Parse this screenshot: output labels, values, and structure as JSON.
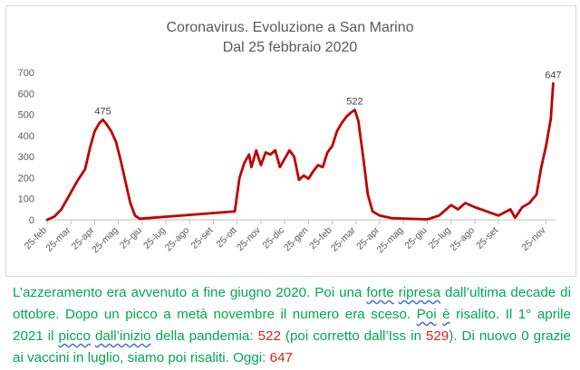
{
  "chart_data": {
    "type": "line",
    "title": "Coronavirus. Evoluzione a San Marino",
    "subtitle": "Dal 25 febbraio 2020",
    "xlabel": "",
    "ylabel": "",
    "ylim": [
      0,
      700
    ],
    "y_ticks": [
      "0",
      "100",
      "200",
      "300",
      "400",
      "500",
      "600",
      "700"
    ],
    "x_tick_labels": [
      "25-feb",
      "25-mar",
      "25-apr",
      "25-mag",
      "25-giu",
      "25-lug",
      "25-ago",
      "25-set",
      "25-ott",
      "25-nov",
      "25-dic",
      "25-gen",
      "25-feb",
      "25-mar",
      "25-apr",
      "25-mag",
      "25-giu",
      "25-lug",
      "25-ago",
      "25-set",
      "25-nov"
    ],
    "x_tick_index": [
      0,
      1,
      2,
      3,
      4,
      5,
      6,
      7,
      8,
      9,
      10,
      11,
      12,
      13,
      14,
      15,
      16,
      17,
      18,
      19,
      21
    ],
    "x_range": [
      0,
      21.4
    ],
    "grid": false,
    "legend": "none",
    "line_color": "#c00000",
    "series": [
      {
        "values": [
          [
            0,
            0
          ],
          [
            0.3,
            15
          ],
          [
            0.6,
            50
          ],
          [
            0.9,
            110
          ],
          [
            1.1,
            150
          ],
          [
            1.3,
            190
          ],
          [
            1.6,
            240
          ],
          [
            1.8,
            340
          ],
          [
            2.0,
            420
          ],
          [
            2.2,
            460
          ],
          [
            2.35,
            475
          ],
          [
            2.5,
            455
          ],
          [
            2.7,
            420
          ],
          [
            2.9,
            370
          ],
          [
            3.1,
            280
          ],
          [
            3.3,
            180
          ],
          [
            3.5,
            80
          ],
          [
            3.7,
            20
          ],
          [
            3.9,
            5
          ],
          [
            7.9,
            40
          ],
          [
            8.1,
            200
          ],
          [
            8.3,
            270
          ],
          [
            8.5,
            310
          ],
          [
            8.6,
            250
          ],
          [
            8.8,
            330
          ],
          [
            9.0,
            260
          ],
          [
            9.2,
            320
          ],
          [
            9.4,
            310
          ],
          [
            9.6,
            330
          ],
          [
            9.8,
            250
          ],
          [
            10.0,
            290
          ],
          [
            10.2,
            330
          ],
          [
            10.4,
            300
          ],
          [
            10.6,
            190
          ],
          [
            10.8,
            210
          ],
          [
            11.0,
            195
          ],
          [
            11.2,
            230
          ],
          [
            11.4,
            260
          ],
          [
            11.6,
            250
          ],
          [
            11.8,
            320
          ],
          [
            12.0,
            350
          ],
          [
            12.2,
            420
          ],
          [
            12.4,
            460
          ],
          [
            12.6,
            490
          ],
          [
            12.8,
            510
          ],
          [
            12.95,
            522
          ],
          [
            13.1,
            470
          ],
          [
            13.3,
            300
          ],
          [
            13.5,
            120
          ],
          [
            13.7,
            40
          ],
          [
            14.0,
            20
          ],
          [
            14.5,
            8
          ],
          [
            16.0,
            2
          ],
          [
            16.5,
            20
          ],
          [
            16.8,
            50
          ],
          [
            17.0,
            70
          ],
          [
            17.3,
            50
          ],
          [
            17.6,
            80
          ],
          [
            18.0,
            60
          ],
          [
            18.5,
            40
          ],
          [
            19.0,
            20
          ],
          [
            19.5,
            50
          ],
          [
            19.7,
            10
          ],
          [
            20.0,
            60
          ],
          [
            20.3,
            80
          ],
          [
            20.6,
            120
          ],
          [
            20.8,
            250
          ],
          [
            21.0,
            350
          ],
          [
            21.2,
            480
          ],
          [
            21.3,
            647
          ]
        ]
      }
    ],
    "annotations": [
      {
        "x": 2.35,
        "y": 475,
        "text": "475"
      },
      {
        "x": 12.95,
        "y": 522,
        "text": "522"
      },
      {
        "x": 21.3,
        "y": 647,
        "text": "647"
      }
    ]
  },
  "caption": {
    "part1": "L’azzeramento era avvenuto a fine giugno 2020. Poi una ",
    "part2": "forte",
    "part3": " ",
    "part4": "ripresa",
    "part5": " dall’ultima decade di ottobre. Dopo un picco a metà novembre il numero era sceso. ",
    "part6": "Poi",
    "part7": " ",
    "part8": "è",
    "part9": " risalito. Il 1° aprile 2021 il ",
    "part10": "picco",
    "part11": "  ",
    "part12": "dall’inizio",
    "part13": " della pandemia: ",
    "part14": "522",
    "part15": " (poi corretto dall’Iss in ",
    "part16": "529",
    "part17": "). Di nuovo 0 grazie ai vaccini in luglio, siamo poi risaliti. Oggi: ",
    "part18": "647"
  }
}
